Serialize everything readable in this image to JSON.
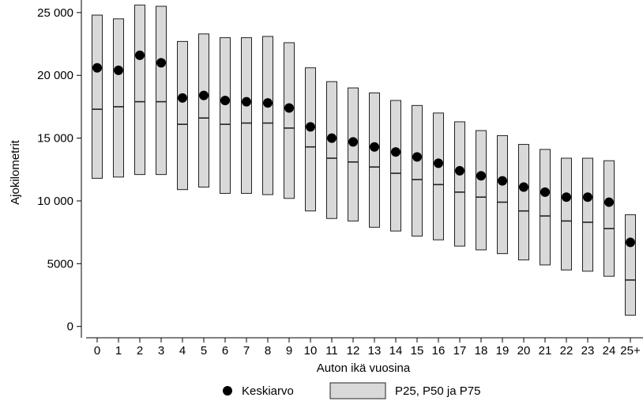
{
  "chart_data": {
    "type": "box",
    "categories": [
      "0",
      "1",
      "2",
      "3",
      "4",
      "5",
      "6",
      "7",
      "8",
      "9",
      "10",
      "11",
      "12",
      "13",
      "14",
      "15",
      "16",
      "17",
      "18",
      "19",
      "20",
      "21",
      "22",
      "23",
      "24",
      "25+"
    ],
    "series": [
      {
        "name": "P25, P50 ja P75",
        "p25": [
          11800,
          11900,
          12100,
          12100,
          10900,
          11100,
          10600,
          10600,
          10500,
          10200,
          9200,
          8600,
          8400,
          7900,
          7600,
          7200,
          6900,
          6400,
          6100,
          5800,
          5300,
          4900,
          4500,
          4400,
          4000,
          900
        ],
        "p50": [
          17300,
          17500,
          17900,
          17900,
          16100,
          16600,
          16100,
          16200,
          16200,
          15800,
          14300,
          13400,
          13100,
          12700,
          12200,
          11700,
          11300,
          10700,
          10300,
          9900,
          9200,
          8800,
          8400,
          8300,
          7800,
          3700
        ],
        "p75": [
          24800,
          24500,
          25600,
          25500,
          22700,
          23300,
          23000,
          23000,
          23100,
          22600,
          20600,
          19500,
          19000,
          18600,
          18000,
          17600,
          17000,
          16300,
          15600,
          15200,
          14500,
          14100,
          13400,
          13400,
          13200,
          8900
        ]
      },
      {
        "name": "Keskiarvo",
        "values": [
          20600,
          20400,
          21600,
          21000,
          18200,
          18400,
          18000,
          17900,
          17800,
          17400,
          15900,
          15000,
          14700,
          14300,
          13900,
          13500,
          13000,
          12400,
          12000,
          11600,
          11100,
          10700,
          10300,
          10300,
          9900,
          6700
        ]
      }
    ],
    "xlabel": "Auton ikä vuosina",
    "ylabel": "Ajokilometrit",
    "yticks": [
      0,
      5000,
      10000,
      15000,
      20000,
      25000
    ],
    "ytick_labels": [
      "0",
      "5000",
      "10 000",
      "15 000",
      "20 000",
      "25 000"
    ],
    "ylim": [
      -900,
      26000
    ],
    "grid": false,
    "legend": {
      "position": "bottom",
      "items": [
        "Keskiarvo",
        "P25, P50 ja P75"
      ]
    },
    "colors": {
      "box_fill": "#d9d9d9",
      "box_stroke": "#222222",
      "median": "#222222",
      "mean_marker": "#000000"
    }
  }
}
